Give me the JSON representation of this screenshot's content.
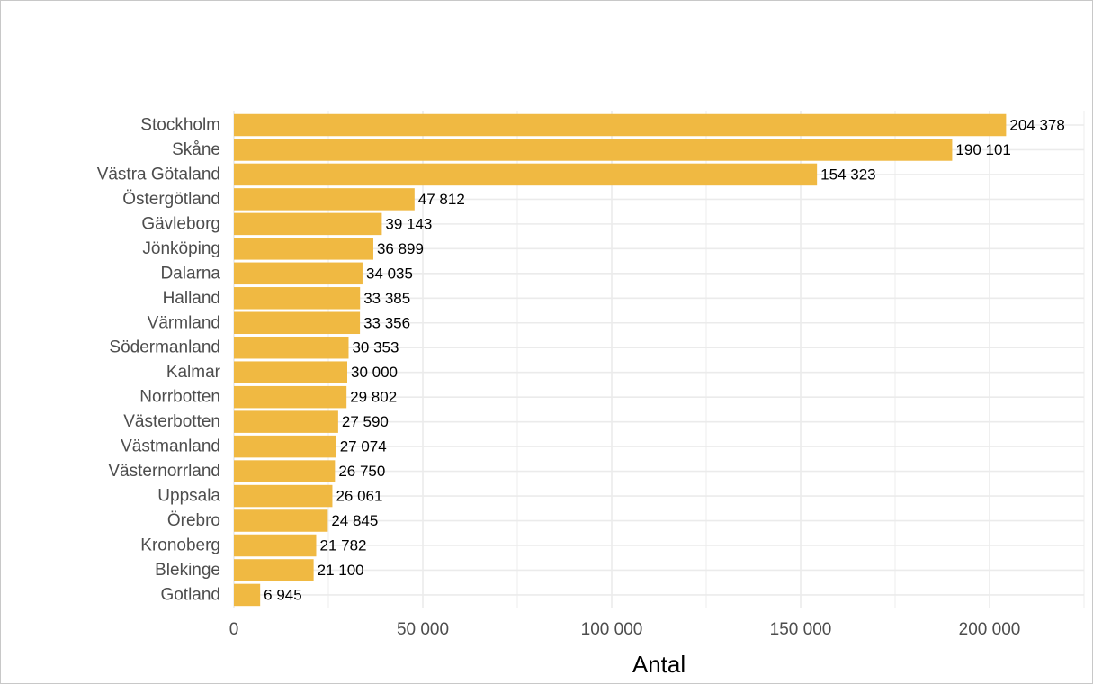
{
  "chart_data": {
    "type": "bar",
    "orientation": "horizontal",
    "title": "",
    "xlabel": "Antal",
    "ylabel": "",
    "categories": [
      "Stockholm",
      "Skåne",
      "Västra Götaland",
      "Östergötland",
      "Gävleborg",
      "Jönköping",
      "Dalarna",
      "Halland",
      "Värmland",
      "Södermanland",
      "Kalmar",
      "Norrbotten",
      "Västerbotten",
      "Västmanland",
      "Västernorrland",
      "Uppsala",
      "Örebro",
      "Kronoberg",
      "Blekinge",
      "Gotland"
    ],
    "values": [
      204378,
      190101,
      154323,
      47812,
      39143,
      36899,
      34035,
      33385,
      33356,
      30353,
      30000,
      29802,
      27590,
      27074,
      26750,
      26061,
      24845,
      21782,
      21100,
      6945
    ],
    "value_labels": [
      "204 378",
      "190 101",
      "154 323",
      "47 812",
      "39 143",
      "36 899",
      "34 035",
      "33 385",
      "33 356",
      "30 353",
      "30 000",
      "29 802",
      "27 590",
      "27 074",
      "26 750",
      "26 061",
      "24 845",
      "21 782",
      "21 100",
      "6 945"
    ],
    "xlim": [
      0,
      225000
    ],
    "xticks": [
      0,
      50000,
      100000,
      150000,
      200000
    ],
    "xtick_labels": [
      "0",
      "50 000",
      "100 000",
      "150 000",
      "200 000"
    ],
    "grid": true,
    "legend": "none",
    "colors": {
      "bar": "#f0b942",
      "grid": "#ebebeb",
      "background": "#ffffff"
    }
  }
}
